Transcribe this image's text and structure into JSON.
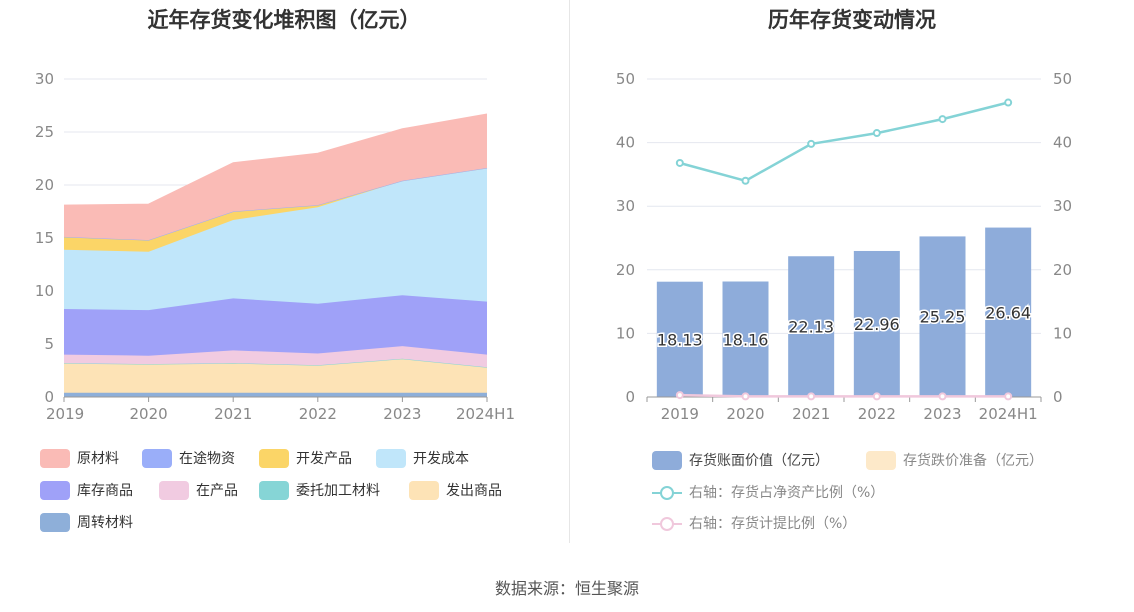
{
  "source_text": "数据来源：恒生聚源",
  "chart_data": [
    {
      "type": "area",
      "stacked": true,
      "title": "近年存货变化堆积图（亿元）",
      "categories": [
        "2019",
        "2020",
        "2021",
        "2022",
        "2023",
        "2024H1"
      ],
      "ylim": [
        0,
        30
      ],
      "yticks": [
        "0",
        "5",
        "10",
        "15",
        "20",
        "25",
        "30"
      ],
      "grid": true,
      "legend_position": "bottom",
      "series": [
        {
          "name": "周转材料",
          "color": "#8eafd9",
          "values": [
            0.4,
            0.4,
            0.4,
            0.4,
            0.4,
            0.4
          ]
        },
        {
          "name": "发出商品",
          "color": "#fde3b6",
          "values": [
            2.8,
            2.7,
            2.8,
            2.6,
            3.2,
            2.4
          ]
        },
        {
          "name": "委托加工材料",
          "color": "#86d5d6",
          "values": [
            0.0,
            0.0,
            0.0,
            0.0,
            0.0,
            0.0
          ]
        },
        {
          "name": "在产品",
          "color": "#f1cbe1",
          "values": [
            0.8,
            0.8,
            1.2,
            1.1,
            1.2,
            1.2
          ]
        },
        {
          "name": "库存商品",
          "color": "#9fa1f8",
          "values": [
            4.3,
            4.3,
            4.9,
            4.7,
            4.8,
            5.0
          ]
        },
        {
          "name": "开发成本",
          "color": "#c0e6fa",
          "values": [
            5.6,
            5.5,
            7.4,
            9.1,
            10.8,
            12.6
          ]
        },
        {
          "name": "开发产品",
          "color": "#fbd567",
          "values": [
            1.2,
            1.1,
            0.8,
            0.2,
            0.0,
            0.0
          ]
        },
        {
          "name": "在途物资",
          "color": "#9aaef9",
          "values": [
            0.0,
            0.0,
            0.0,
            0.0,
            0.0,
            0.0
          ]
        },
        {
          "name": "原材料",
          "color": "#fabbb6",
          "values": [
            3.0,
            3.4,
            4.6,
            4.9,
            4.9,
            5.1
          ]
        }
      ]
    },
    {
      "type": "bar",
      "title": "历年存货变动情况",
      "categories": [
        "2019",
        "2020",
        "2021",
        "2022",
        "2023",
        "2024H1"
      ],
      "ylim": [
        0,
        50
      ],
      "y2lim": [
        0,
        50
      ],
      "yticks": [
        "0",
        "10",
        "20",
        "30",
        "40",
        "50"
      ],
      "grid": true,
      "legend_position": "bottom",
      "series": [
        {
          "name": "存货账面价值（亿元）",
          "kind": "bar",
          "color": "#8eacda",
          "values": [
            18.13,
            18.16,
            22.13,
            22.96,
            25.25,
            26.64
          ],
          "labels": [
            "18.13",
            "18.16",
            "22.13",
            "22.96",
            "25.25",
            "26.64"
          ]
        },
        {
          "name": "存货跌价准备（亿元）",
          "kind": "bar",
          "color": "#fde9c9",
          "values": [
            0,
            0,
            0,
            0,
            0,
            0
          ]
        },
        {
          "name": "右轴：存货占净资产比例（%）",
          "kind": "line",
          "axis": "right",
          "color": "#84d3d6",
          "values": [
            36.8,
            34.0,
            39.8,
            41.5,
            43.7,
            46.3
          ]
        },
        {
          "name": "右轴：存货计提比例（%）",
          "kind": "line",
          "axis": "right",
          "color": "#f0c8dc",
          "values": [
            0.3,
            0.1,
            0.1,
            0.1,
            0.1,
            0.1
          ]
        }
      ]
    }
  ]
}
